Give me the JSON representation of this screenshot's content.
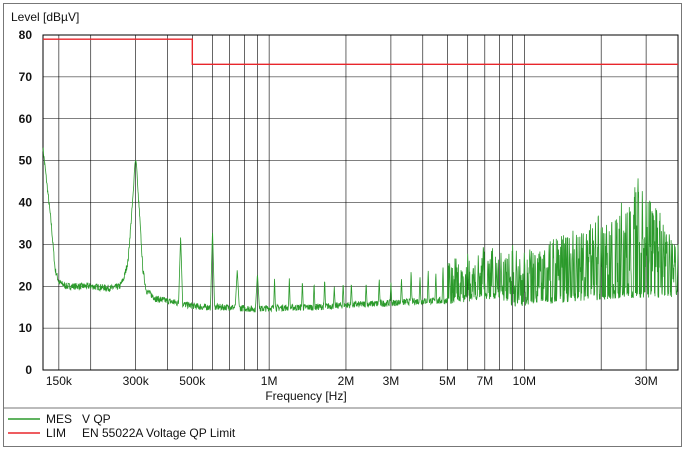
{
  "chart_data": {
    "type": "line",
    "xlabel": "Frequency [Hz]",
    "ylabel": "Level [dBµV]",
    "x_scale": "log",
    "xlim": [
      130000,
      40000000
    ],
    "ylim": [
      0,
      80
    ],
    "grid": true,
    "yticks": [
      0,
      10,
      20,
      30,
      40,
      50,
      60,
      70,
      80
    ],
    "xtick_labels": [
      {
        "value": 150000,
        "label": "150k"
      },
      {
        "value": 300000,
        "label": "300k"
      },
      {
        "value": 500000,
        "label": "500k"
      },
      {
        "value": 1000000,
        "label": "1M"
      },
      {
        "value": 2000000,
        "label": "2M"
      },
      {
        "value": 3000000,
        "label": "3M"
      },
      {
        "value": 5000000,
        "label": "5M"
      },
      {
        "value": 7000000,
        "label": "7M"
      },
      {
        "value": 10000000,
        "label": "10M"
      },
      {
        "value": 30000000,
        "label": "30M"
      }
    ],
    "grid_x": [
      150000,
      200000,
      300000,
      400000,
      500000,
      600000,
      700000,
      800000,
      900000,
      1000000,
      2000000,
      3000000,
      4000000,
      5000000,
      6000000,
      7000000,
      8000000,
      9000000,
      10000000,
      20000000,
      30000000
    ],
    "legend_placement": "bottom",
    "series": [
      {
        "name": "MES   V QP",
        "legend_id": "MES",
        "legend_text": "V QP",
        "color": "#2b9a2b",
        "baseline": [
          [
            130000,
            53
          ],
          [
            140000,
            35
          ],
          [
            145000,
            24
          ],
          [
            150000,
            21
          ],
          [
            160000,
            20
          ],
          [
            180000,
            20
          ],
          [
            200000,
            20
          ],
          [
            240000,
            19.5
          ],
          [
            260000,
            20
          ],
          [
            270000,
            22
          ],
          [
            280000,
            26
          ],
          [
            290000,
            38
          ],
          [
            300000,
            50
          ],
          [
            310000,
            38
          ],
          [
            320000,
            24
          ],
          [
            330000,
            19
          ],
          [
            360000,
            17
          ],
          [
            400000,
            16.5
          ],
          [
            440000,
            16
          ],
          [
            480000,
            15.5
          ],
          [
            550000,
            15
          ],
          [
            700000,
            15
          ],
          [
            900000,
            14.5
          ],
          [
            1000000,
            14.8
          ],
          [
            1500000,
            15
          ],
          [
            2000000,
            15.5
          ],
          [
            3000000,
            16
          ],
          [
            4000000,
            16.5
          ],
          [
            5000000,
            16.5
          ],
          [
            6000000,
            17
          ],
          [
            7000000,
            17.5
          ],
          [
            8000000,
            18
          ],
          [
            9000000,
            16
          ],
          [
            10000000,
            16
          ],
          [
            15000000,
            17
          ],
          [
            20000000,
            17.5
          ],
          [
            25000000,
            18
          ],
          [
            30000000,
            18
          ],
          [
            35000000,
            18
          ],
          [
            40000000,
            18
          ]
        ],
        "peaks": [
          [
            300000,
            50
          ],
          [
            450000,
            32
          ],
          [
            600000,
            33.5
          ],
          [
            750000,
            24
          ],
          [
            900000,
            23
          ],
          [
            1050000,
            22
          ],
          [
            1200000,
            22
          ],
          [
            1350000,
            21.5
          ],
          [
            1500000,
            21
          ],
          [
            1650000,
            22
          ],
          [
            1800000,
            20
          ],
          [
            1950000,
            21
          ],
          [
            2100000,
            21
          ],
          [
            2400000,
            21
          ],
          [
            2700000,
            22
          ],
          [
            3000000,
            21
          ],
          [
            3300000,
            22
          ],
          [
            3600000,
            24
          ],
          [
            3900000,
            22.5
          ],
          [
            4200000,
            24
          ],
          [
            4500000,
            23.5
          ],
          [
            4800000,
            25
          ],
          [
            5100000,
            26
          ],
          [
            5400000,
            27
          ],
          [
            5700000,
            24
          ],
          [
            6000000,
            28
          ],
          [
            6300000,
            25
          ],
          [
            6600000,
            28
          ],
          [
            6900000,
            30
          ],
          [
            7200000,
            27
          ],
          [
            7500000,
            30
          ],
          [
            7800000,
            26
          ],
          [
            8100000,
            28
          ],
          [
            8400000,
            27
          ],
          [
            8700000,
            28
          ],
          [
            9000000,
            30
          ],
          [
            9300000,
            29
          ],
          [
            9600000,
            27
          ],
          [
            10000000,
            29
          ],
          [
            10500000,
            30
          ],
          [
            11000000,
            28
          ],
          [
            11500000,
            29
          ],
          [
            12000000,
            30
          ],
          [
            12500000,
            31
          ],
          [
            13000000,
            32
          ],
          [
            13500000,
            31
          ],
          [
            14000000,
            33
          ],
          [
            14500000,
            32
          ],
          [
            15000000,
            32
          ],
          [
            15500000,
            34
          ],
          [
            16000000,
            33
          ],
          [
            16500000,
            32
          ],
          [
            17000000,
            35
          ],
          [
            17500000,
            34
          ],
          [
            18000000,
            36
          ],
          [
            18500000,
            34
          ],
          [
            19000000,
            36
          ],
          [
            19500000,
            37
          ],
          [
            20000000,
            36
          ],
          [
            21000000,
            35
          ],
          [
            22000000,
            38
          ],
          [
            23000000,
            37
          ],
          [
            24000000,
            40
          ],
          [
            25000000,
            38
          ],
          [
            26000000,
            41
          ],
          [
            27000000,
            44
          ],
          [
            28000000,
            46
          ],
          [
            29000000,
            45
          ],
          [
            30000000,
            43
          ],
          [
            31000000,
            42
          ],
          [
            32000000,
            40
          ],
          [
            33000000,
            41
          ],
          [
            34000000,
            38
          ],
          [
            35000000,
            35
          ],
          [
            36000000,
            33
          ],
          [
            37000000,
            34
          ],
          [
            38000000,
            32
          ],
          [
            39000000,
            31
          ],
          [
            40000000,
            30
          ]
        ]
      },
      {
        "name": "LIM   EN 55022A Voltage QP Limit",
        "legend_id": "LIM",
        "legend_text": "EN 55022A Voltage QP Limit",
        "color": "#e8262b",
        "points": [
          [
            130000,
            79
          ],
          [
            500000,
            79
          ],
          [
            500000,
            73
          ],
          [
            40000000,
            73
          ]
        ]
      }
    ]
  }
}
